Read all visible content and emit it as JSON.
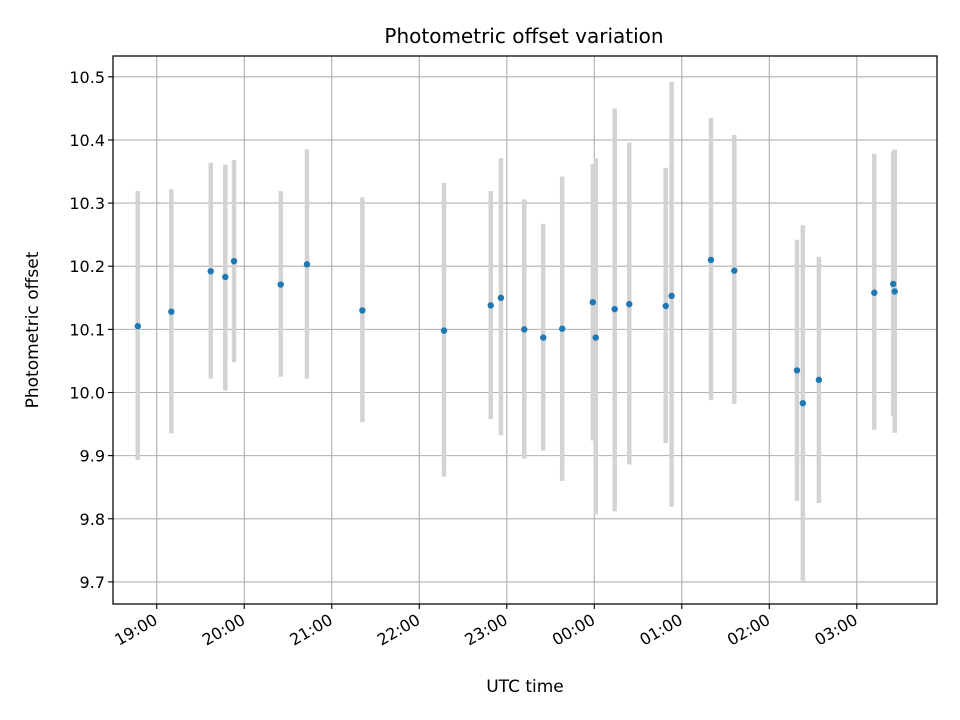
{
  "chart_data": {
    "type": "scatter",
    "title": "Photometric offset variation",
    "xlabel": "UTC time",
    "ylabel": "Photometric offset",
    "grid": true,
    "x_range": [
      "18:30",
      "03:55"
    ],
    "ylim": [
      9.665,
      10.533
    ],
    "x_ticks": [
      "19:00",
      "20:00",
      "21:00",
      "22:00",
      "23:00",
      "00:00",
      "01:00",
      "02:00",
      "03:00"
    ],
    "y_ticks": [
      "9.7",
      "9.8",
      "9.9",
      "10.0",
      "10.1",
      "10.2",
      "10.3",
      "10.4",
      "10.5"
    ],
    "point_color": "#1f77b4",
    "errorbar_color": "#d3d3d3",
    "points": [
      {
        "x": "18:47",
        "y": 10.105,
        "yerr_low": 9.893,
        "yerr_high": 10.319
      },
      {
        "x": "19:10",
        "y": 10.128,
        "yerr_low": 9.935,
        "yerr_high": 10.322
      },
      {
        "x": "19:37",
        "y": 10.192,
        "yerr_low": 10.022,
        "yerr_high": 10.364
      },
      {
        "x": "19:47",
        "y": 10.183,
        "yerr_low": 10.003,
        "yerr_high": 10.361
      },
      {
        "x": "19:53",
        "y": 10.208,
        "yerr_low": 10.048,
        "yerr_high": 10.368
      },
      {
        "x": "20:25",
        "y": 10.171,
        "yerr_low": 10.025,
        "yerr_high": 10.319
      },
      {
        "x": "20:43",
        "y": 10.203,
        "yerr_low": 10.022,
        "yerr_high": 10.385
      },
      {
        "x": "21:21",
        "y": 10.13,
        "yerr_low": 9.953,
        "yerr_high": 10.309
      },
      {
        "x": "22:17",
        "y": 10.098,
        "yerr_low": 9.867,
        "yerr_high": 10.332
      },
      {
        "x": "22:49",
        "y": 10.138,
        "yerr_low": 9.958,
        "yerr_high": 10.319
      },
      {
        "x": "22:56",
        "y": 10.15,
        "yerr_low": 9.932,
        "yerr_high": 10.371
      },
      {
        "x": "23:12",
        "y": 10.1,
        "yerr_low": 9.895,
        "yerr_high": 10.306
      },
      {
        "x": "23:25",
        "y": 10.087,
        "yerr_low": 9.908,
        "yerr_high": 10.267
      },
      {
        "x": "23:38",
        "y": 10.101,
        "yerr_low": 9.86,
        "yerr_high": 10.342
      },
      {
        "x": "23:59",
        "y": 10.143,
        "yerr_low": 9.924,
        "yerr_high": 10.362
      },
      {
        "x": "00:01",
        "y": 10.087,
        "yerr_low": 9.807,
        "yerr_high": 10.371
      },
      {
        "x": "00:14",
        "y": 10.132,
        "yerr_low": 9.812,
        "yerr_high": 10.45
      },
      {
        "x": "00:24",
        "y": 10.14,
        "yerr_low": 9.886,
        "yerr_high": 10.396
      },
      {
        "x": "00:49",
        "y": 10.137,
        "yerr_low": 9.92,
        "yerr_high": 10.356
      },
      {
        "x": "00:53",
        "y": 10.153,
        "yerr_low": 9.819,
        "yerr_high": 10.492
      },
      {
        "x": "01:20",
        "y": 10.21,
        "yerr_low": 9.988,
        "yerr_high": 10.435
      },
      {
        "x": "01:36",
        "y": 10.193,
        "yerr_low": 9.982,
        "yerr_high": 10.408
      },
      {
        "x": "02:19",
        "y": 10.035,
        "yerr_low": 9.828,
        "yerr_high": 10.242
      },
      {
        "x": "02:23",
        "y": 9.983,
        "yerr_low": 9.702,
        "yerr_high": 10.265
      },
      {
        "x": "02:34",
        "y": 10.02,
        "yerr_low": 9.825,
        "yerr_high": 10.215
      },
      {
        "x": "03:12",
        "y": 10.158,
        "yerr_low": 9.941,
        "yerr_high": 10.378
      },
      {
        "x": "03:25",
        "y": 10.172,
        "yerr_low": 9.962,
        "yerr_high": 10.382
      },
      {
        "x": "03:26",
        "y": 10.16,
        "yerr_low": 9.936,
        "yerr_high": 10.385
      }
    ]
  }
}
